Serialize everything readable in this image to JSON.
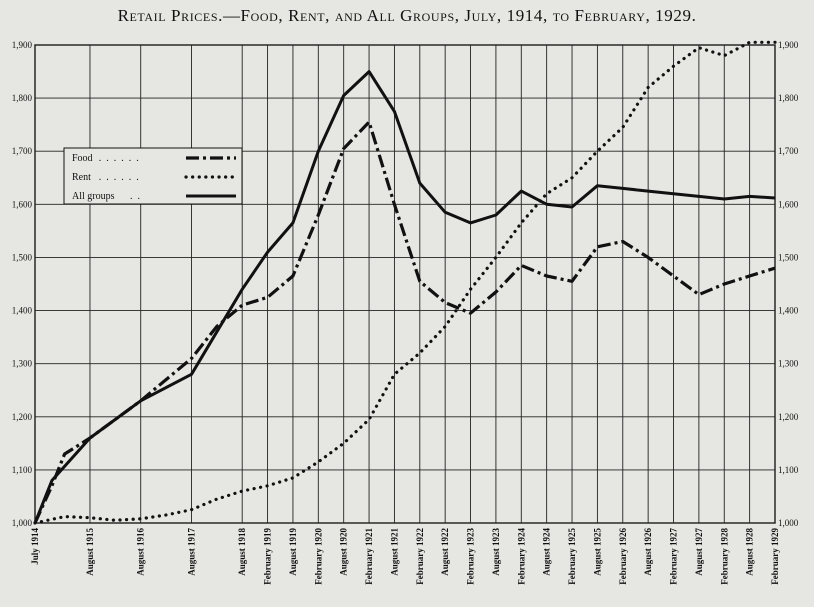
{
  "chart_data": {
    "type": "line",
    "title": "Retail Prices.—Food, Rent, and All Groups, July, 1914, to February, 1929.",
    "xlabel": "",
    "ylabel": "",
    "ylim": [
      1000,
      1900
    ],
    "y_ticks": [
      "1,000",
      "1,100",
      "1,200",
      "1,300",
      "1,400",
      "1,500",
      "1,600",
      "1,700",
      "1,800",
      "1,900"
    ],
    "grid": true,
    "legend_position": "upper-left",
    "x_labels": [
      "July 1914",
      "August 1915",
      "August 1916",
      "August 1917",
      "August 1918",
      "February 1919",
      "August 1919",
      "February 1920",
      "August 1920",
      "February 1921",
      "August 1921",
      "February 1922",
      "August 1922",
      "February 1923",
      "August 1923",
      "February 1924",
      "August 1924",
      "February 1925",
      "August 1925",
      "February 1926",
      "August 1926",
      "February 1927",
      "August 1927",
      "February 1928",
      "August 1928",
      "February 1929"
    ],
    "x_months": [
      0,
      13,
      25,
      37,
      49,
      55,
      61,
      67,
      73,
      79,
      85,
      91,
      97,
      103,
      109,
      115,
      121,
      127,
      133,
      139,
      145,
      151,
      157,
      163,
      169,
      175
    ],
    "series": [
      {
        "name": "Food",
        "style": "dash-dot",
        "points": [
          [
            0,
            1000
          ],
          [
            4,
            1070
          ],
          [
            7,
            1130
          ],
          [
            13,
            1160
          ],
          [
            19,
            1195
          ],
          [
            25,
            1230
          ],
          [
            31,
            1270
          ],
          [
            37,
            1310
          ],
          [
            43,
            1370
          ],
          [
            49,
            1410
          ],
          [
            55,
            1425
          ],
          [
            61,
            1465
          ],
          [
            67,
            1580
          ],
          [
            73,
            1705
          ],
          [
            79,
            1755
          ],
          [
            85,
            1600
          ],
          [
            91,
            1455
          ],
          [
            97,
            1415
          ],
          [
            103,
            1395
          ],
          [
            109,
            1435
          ],
          [
            115,
            1485
          ],
          [
            121,
            1465
          ],
          [
            127,
            1455
          ],
          [
            133,
            1520
          ],
          [
            139,
            1530
          ],
          [
            145,
            1500
          ],
          [
            151,
            1465
          ],
          [
            157,
            1430
          ],
          [
            163,
            1450
          ],
          [
            169,
            1465
          ],
          [
            175,
            1480
          ]
        ]
      },
      {
        "name": "Rent",
        "style": "dotted",
        "points": [
          [
            0,
            1000
          ],
          [
            7,
            1012
          ],
          [
            13,
            1010
          ],
          [
            19,
            1005
          ],
          [
            25,
            1008
          ],
          [
            31,
            1015
          ],
          [
            37,
            1025
          ],
          [
            43,
            1045
          ],
          [
            49,
            1060
          ],
          [
            55,
            1070
          ],
          [
            61,
            1085
          ],
          [
            67,
            1115
          ],
          [
            73,
            1150
          ],
          [
            79,
            1195
          ],
          [
            85,
            1280
          ],
          [
            91,
            1320
          ],
          [
            97,
            1370
          ],
          [
            103,
            1440
          ],
          [
            109,
            1500
          ],
          [
            115,
            1565
          ],
          [
            121,
            1620
          ],
          [
            127,
            1650
          ],
          [
            133,
            1700
          ],
          [
            139,
            1745
          ],
          [
            145,
            1820
          ],
          [
            151,
            1860
          ],
          [
            157,
            1895
          ],
          [
            163,
            1880
          ],
          [
            169,
            1905
          ],
          [
            175,
            1905
          ]
        ]
      },
      {
        "name": "All groups",
        "style": "solid",
        "points": [
          [
            0,
            1000
          ],
          [
            4,
            1080
          ],
          [
            13,
            1160
          ],
          [
            25,
            1230
          ],
          [
            37,
            1280
          ],
          [
            49,
            1440
          ],
          [
            55,
            1510
          ],
          [
            61,
            1565
          ],
          [
            67,
            1700
          ],
          [
            73,
            1805
          ],
          [
            79,
            1850
          ],
          [
            85,
            1775
          ],
          [
            91,
            1640
          ],
          [
            97,
            1585
          ],
          [
            103,
            1565
          ],
          [
            109,
            1580
          ],
          [
            115,
            1625
          ],
          [
            121,
            1600
          ],
          [
            127,
            1595
          ],
          [
            133,
            1635
          ],
          [
            139,
            1630
          ],
          [
            145,
            1625
          ],
          [
            151,
            1620
          ],
          [
            157,
            1615
          ],
          [
            163,
            1610
          ],
          [
            169,
            1615
          ],
          [
            175,
            1612
          ]
        ]
      }
    ]
  }
}
